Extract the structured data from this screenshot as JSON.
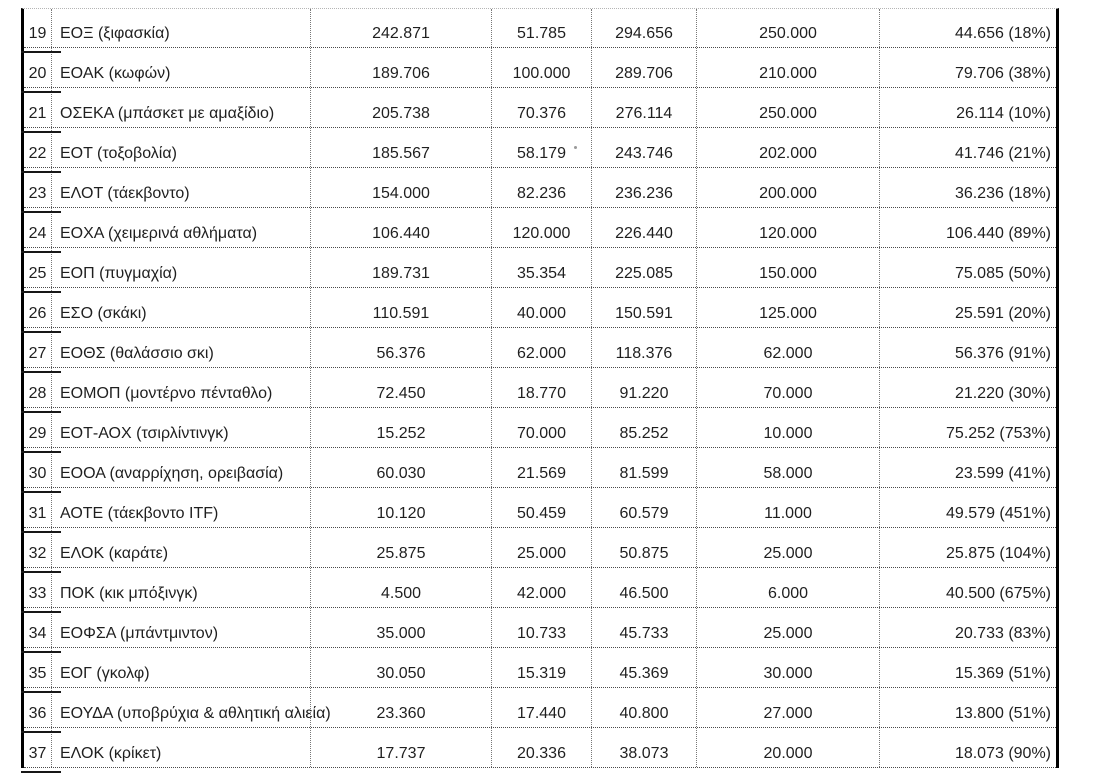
{
  "table": {
    "rows": [
      {
        "num": "19",
        "name": "ΕΟΞ (ξιφασκία)",
        "values": [
          "242.871",
          "51.785",
          "294.656",
          "250.000",
          "44.656 (18%)"
        ]
      },
      {
        "num": "20",
        "name": "ΕΟΑΚ (κωφών)",
        "values": [
          "189.706",
          "100.000",
          "289.706",
          "210.000",
          "79.706 (38%)"
        ]
      },
      {
        "num": "21",
        "name": "ΟΣΕΚΑ (μπάσκετ με αμαξίδιο)",
        "values": [
          "205.738",
          "70.376",
          "276.114",
          "250.000",
          "26.114 (10%)"
        ]
      },
      {
        "num": "22",
        "name": "ΕΟΤ (τοξοβολία)",
        "values": [
          "185.567",
          "58.179",
          "243.746",
          "202.000",
          "41.746 (21%)"
        ]
      },
      {
        "num": "23",
        "name": "ΕΛΟΤ (τάεκβοντο)",
        "values": [
          "154.000",
          "82.236",
          "236.236",
          "200.000",
          "36.236 (18%)"
        ]
      },
      {
        "num": "24",
        "name": "ΕΟΧΑ (χειμερινά αθλήματα)",
        "values": [
          "106.440",
          "120.000",
          "226.440",
          "120.000",
          "106.440 (89%)"
        ]
      },
      {
        "num": "25",
        "name": "ΕΟΠ (πυγμαχία)",
        "values": [
          "189.731",
          "35.354",
          "225.085",
          "150.000",
          "75.085 (50%)"
        ]
      },
      {
        "num": "26",
        "name": "ΕΣΟ (σκάκι)",
        "values": [
          "110.591",
          "40.000",
          "150.591",
          "125.000",
          "25.591 (20%)"
        ]
      },
      {
        "num": "27",
        "name": "ΕΟΘΣ (θαλάσσιο σκι)",
        "values": [
          "56.376",
          "62.000",
          "118.376",
          "62.000",
          "56.376 (91%)"
        ]
      },
      {
        "num": "28",
        "name": "ΕΟΜΟΠ (μοντέρνο πένταθλο)",
        "values": [
          "72.450",
          "18.770",
          "91.220",
          "70.000",
          "21.220 (30%)"
        ]
      },
      {
        "num": "29",
        "name": "ΕΟΤ-ΑΟΧ (τσιρλίντινγκ)",
        "values": [
          "15.252",
          "70.000",
          "85.252",
          "10.000",
          "75.252 (753%)"
        ]
      },
      {
        "num": "30",
        "name": "ΕΟΟΑ (αναρρίχηση, ορειβασία)",
        "values": [
          "60.030",
          "21.569",
          "81.599",
          "58.000",
          "23.599 (41%)"
        ]
      },
      {
        "num": "31",
        "name": "ΑΟΤΕ (τάεκβοντο ITF)",
        "values": [
          "10.120",
          "50.459",
          "60.579",
          "11.000",
          "49.579 (451%)"
        ]
      },
      {
        "num": "32",
        "name": "ΕΛΟΚ (καράτε)",
        "values": [
          "25.875",
          "25.000",
          "50.875",
          "25.000",
          "25.875 (104%)"
        ]
      },
      {
        "num": "33",
        "name": "ΠΟΚ (κικ μπόξινγκ)",
        "values": [
          "4.500",
          "42.000",
          "46.500",
          "6.000",
          "40.500 (675%)"
        ]
      },
      {
        "num": "34",
        "name": "ΕΟΦΣΑ (μπάντμιντον)",
        "values": [
          "35.000",
          "10.733",
          "45.733",
          "25.000",
          "20.733 (83%)"
        ]
      },
      {
        "num": "35",
        "name": "ΕΟΓ (γκολφ)",
        "values": [
          "30.050",
          "15.319",
          "45.369",
          "30.000",
          "15.369 (51%)"
        ]
      },
      {
        "num": "36",
        "name": "ΕΟΥΔΑ (υποβρύχια & αθλητική αλιεία)",
        "values": [
          "23.360",
          "17.440",
          "40.800",
          "27.000",
          "13.800 (51%)"
        ]
      },
      {
        "num": "37",
        "name": "ΕΛΟΚ (κρίκετ)",
        "values": [
          "17.737",
          "20.336",
          "38.073",
          "20.000",
          "18.073 (90%)"
        ]
      }
    ]
  }
}
